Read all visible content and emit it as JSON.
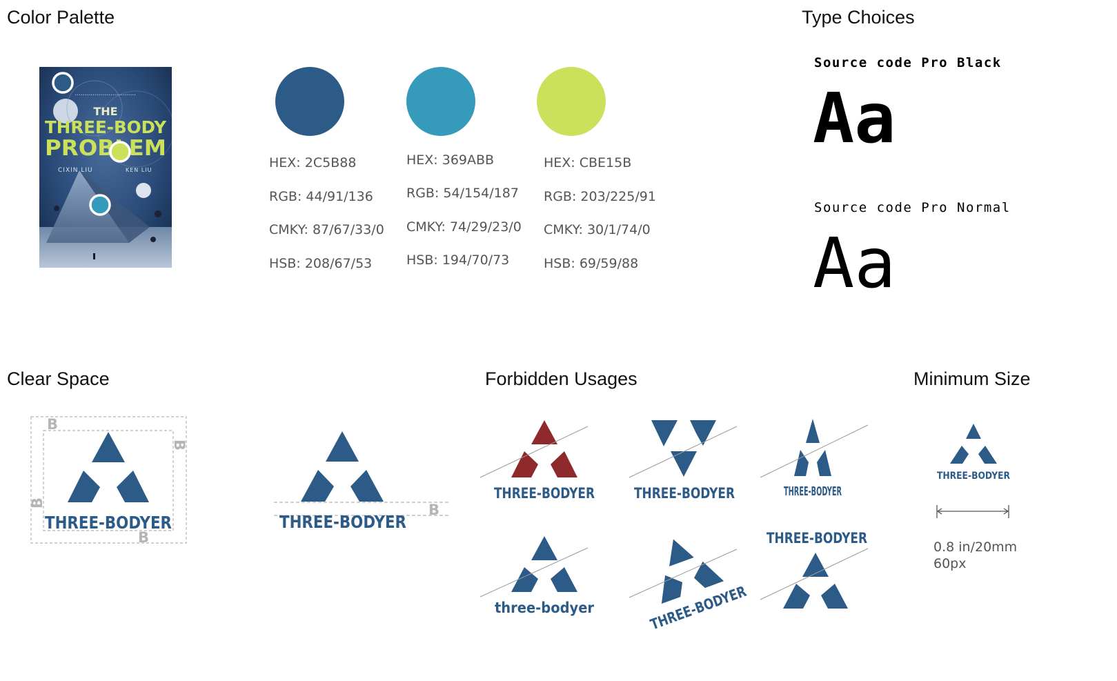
{
  "headings": {
    "color_palette": "Color Palette",
    "type_choices": "Type Choices",
    "clear_space": "Clear Space",
    "forbidden_usages": "Forbidden Usages",
    "minimum_size": "Minimum Size"
  },
  "cover": {
    "title_the": "THE",
    "title_line1": "THREE-BODY",
    "title_line2": "PROBLEM",
    "author": "CIXIN LIU",
    "translator": "KEN LIU"
  },
  "swatches": [
    {
      "color": "#2C5B88",
      "hex": "HEX: 2C5B88",
      "rgb": "RGB: 44/91/136",
      "cmyk": "CMKY: 87/67/33/0",
      "hsb": "HSB: 208/67/53"
    },
    {
      "color": "#369ABB",
      "hex": "HEX: 369ABB",
      "rgb": "RGB: 54/154/187",
      "cmyk": "CMKY: 74/29/23/0",
      "hsb": "HSB: 194/70/73"
    },
    {
      "color": "#CBE15B",
      "hex": "HEX: CBE15B",
      "rgb": "RGB: 203/225/91",
      "cmyk": "CMKY: 30/1/74/0",
      "hsb": "HSB: 69/59/88"
    }
  ],
  "type": {
    "black_name": "Source code Pro Black",
    "black_sample": "Aa",
    "normal_name": "Source code Pro Normal",
    "normal_sample": "Aa"
  },
  "logo": {
    "wordmark": "THREE-BODYER",
    "wordmark_lower": "three-bodyer",
    "clearspace_marker": "B",
    "brand_color": "#2C5B88",
    "forbidden_red": "#8E2A2C"
  },
  "minimum": {
    "size": "0.8 in/20mm",
    "px": "60px"
  }
}
